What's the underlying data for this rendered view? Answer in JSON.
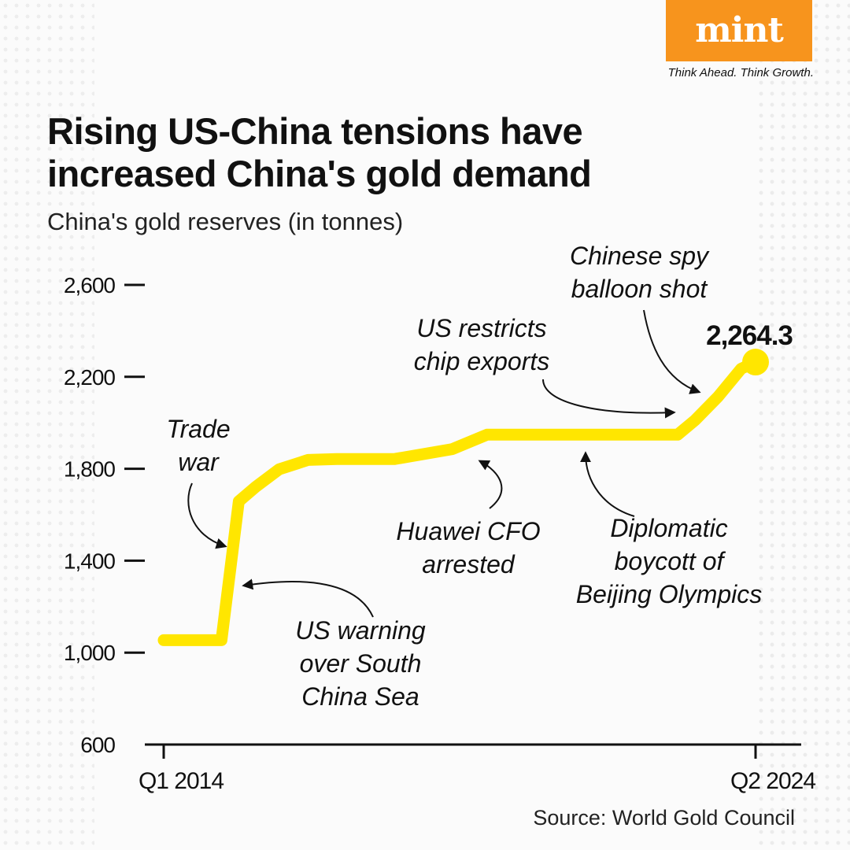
{
  "brand": {
    "name": "mint",
    "tagline": "Think Ahead. Think Growth."
  },
  "header": {
    "title_line1": "Rising US-China tensions have",
    "title_line2": "increased China's gold demand",
    "subtitle": "China's gold reserves (in tonnes)"
  },
  "source": "Source: World Gold Council",
  "chart_data": {
    "type": "line",
    "title": "Rising US-China tensions have increased China's gold demand",
    "ylabel": "China's gold reserves (in tonnes)",
    "xlabel": "",
    "ylim": [
      600,
      2600
    ],
    "yticks": [
      600,
      1000,
      1400,
      1800,
      2200,
      2600
    ],
    "ytick_labels": [
      "600",
      "1,000",
      "1,400",
      "1,800",
      "2,200",
      "2,600"
    ],
    "xlim": [
      2014.0,
      2024.25
    ],
    "xtick_labels": [
      {
        "x": 2014.0,
        "label": "Q1 2014"
      },
      {
        "x": 2024.25,
        "label": "Q2 2024"
      }
    ],
    "series": [
      {
        "name": "China's gold reserves",
        "color": "#ffe600",
        "x": [
          2014.0,
          2015.0,
          2015.3,
          2015.6,
          2016.0,
          2016.5,
          2017.0,
          2018.0,
          2019.0,
          2019.6,
          2019.9,
          2020.5,
          2021.0,
          2022.0,
          2022.9,
          2023.2,
          2023.6,
          2024.0,
          2024.25
        ],
        "values": [
          1054.1,
          1054.1,
          1658.1,
          1722.5,
          1797.5,
          1838.5,
          1842.6,
          1842.6,
          1885.5,
          1948.3,
          1948.3,
          1948.3,
          1948.3,
          1948.3,
          1948.3,
          2010.8,
          2113.5,
          2235.4,
          2264.3
        ]
      }
    ],
    "end_label": "2,264.3",
    "annotations": [
      {
        "text": [
          "Trade",
          "war"
        ],
        "x": 2015.3,
        "y": 1500
      },
      {
        "text": [
          "US warning",
          "over South",
          "China Sea"
        ],
        "x": 2015.2,
        "y": 1300
      },
      {
        "text": [
          "Huawei CFO",
          "arrested"
        ],
        "x": 2018.9,
        "y": 1900
      },
      {
        "text": [
          "Diplomatic",
          "boycott of",
          "Beijing Olympics"
        ],
        "x": 2021.5,
        "y": 1948.3
      },
      {
        "text": [
          "US restricts",
          "chip exports"
        ],
        "x": 2022.9,
        "y": 2000
      },
      {
        "text": [
          "Chinese spy",
          "balloon shot"
        ],
        "x": 2023.3,
        "y": 2060
      }
    ]
  }
}
